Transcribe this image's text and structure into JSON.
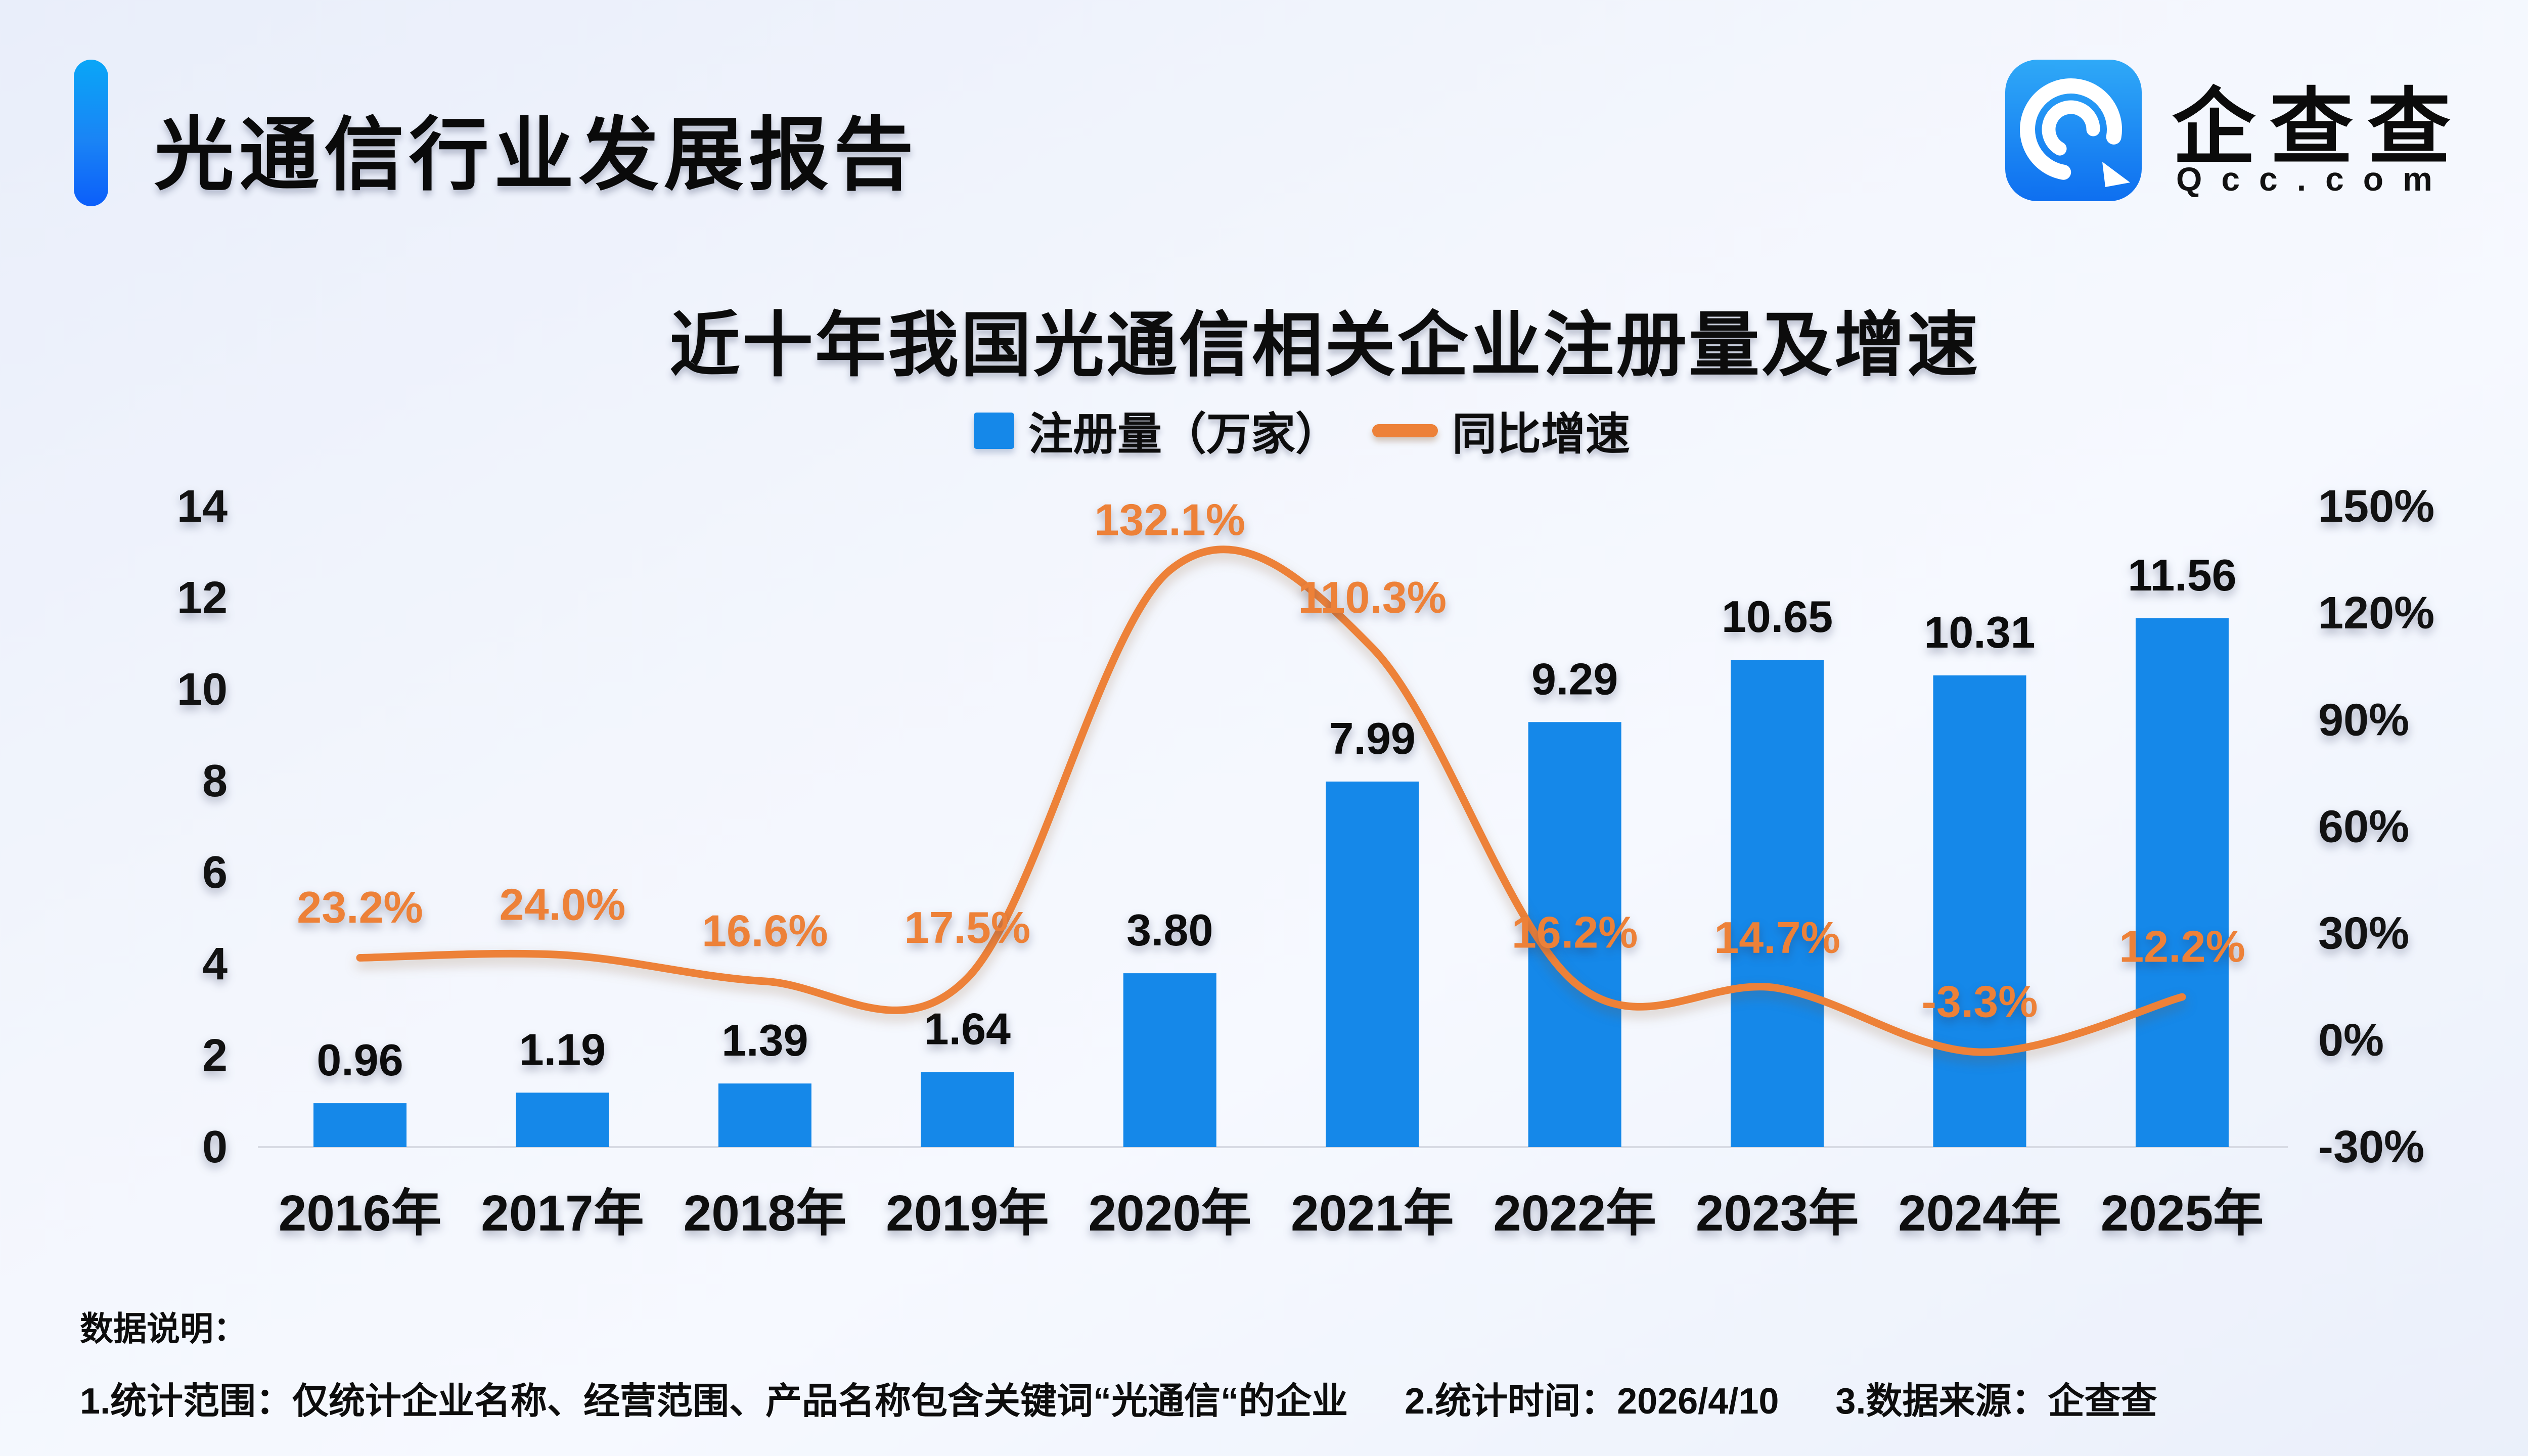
{
  "header": {
    "title": "光通信行业发展报告",
    "accent_color_top": "#09a6f7",
    "accent_color_bottom": "#0b5efa"
  },
  "logo": {
    "brand": "企查查",
    "domain": "Qcc.com",
    "icon": "qcc-magnifier-q-icon",
    "icon_color_top": "#2fa9f7",
    "icon_color_bottom": "#0e6ff0"
  },
  "chart_data": {
    "type": "bar+line",
    "title": "近十年我国光通信相关企业注册量及增速",
    "categories": [
      "2016年",
      "2017年",
      "2018年",
      "2019年",
      "2020年",
      "2021年",
      "2022年",
      "2023年",
      "2024年",
      "2025年"
    ],
    "series": [
      {
        "name": "注册量（万家）",
        "type": "bar",
        "axis": "left",
        "color": "#1588e9",
        "values": [
          0.96,
          1.19,
          1.39,
          1.64,
          3.8,
          7.99,
          9.29,
          10.65,
          10.31,
          11.56
        ],
        "labels": [
          "0.96",
          "1.19",
          "1.39",
          "1.64",
          "3.80",
          "7.99",
          "9.29",
          "10.65",
          "10.31",
          "11.56"
        ]
      },
      {
        "name": "同比增速",
        "type": "line",
        "axis": "right",
        "color": "#ed8138",
        "values": [
          23.2,
          24.0,
          16.6,
          17.5,
          132.1,
          110.3,
          16.2,
          14.7,
          -3.3,
          12.2
        ],
        "labels": [
          "23.2%",
          "24.0%",
          "16.6%",
          "17.5%",
          "132.1%",
          "110.3%",
          "16.2%",
          "14.7%",
          "-3.3%",
          "12.2%"
        ]
      }
    ],
    "left_axis": {
      "min": 0,
      "max": 14,
      "ticks": [
        "0",
        "2",
        "4",
        "6",
        "8",
        "10",
        "12",
        "14"
      ]
    },
    "right_axis": {
      "min": -30,
      "max": 150,
      "ticks": [
        "-30%",
        "0%",
        "30%",
        "60%",
        "90%",
        "120%",
        "150%"
      ]
    },
    "legend_position": "top-center",
    "grid": "off",
    "axis_line_color": "#d8dbe4"
  },
  "footer": {
    "heading": "数据说明：",
    "items": [
      "1.统计范围：仅统计企业名称、经营范围、产品名称包含关键词“光通信“的企业",
      "2.统计时间：2026/4/10",
      "3.数据来源：企查查"
    ]
  }
}
